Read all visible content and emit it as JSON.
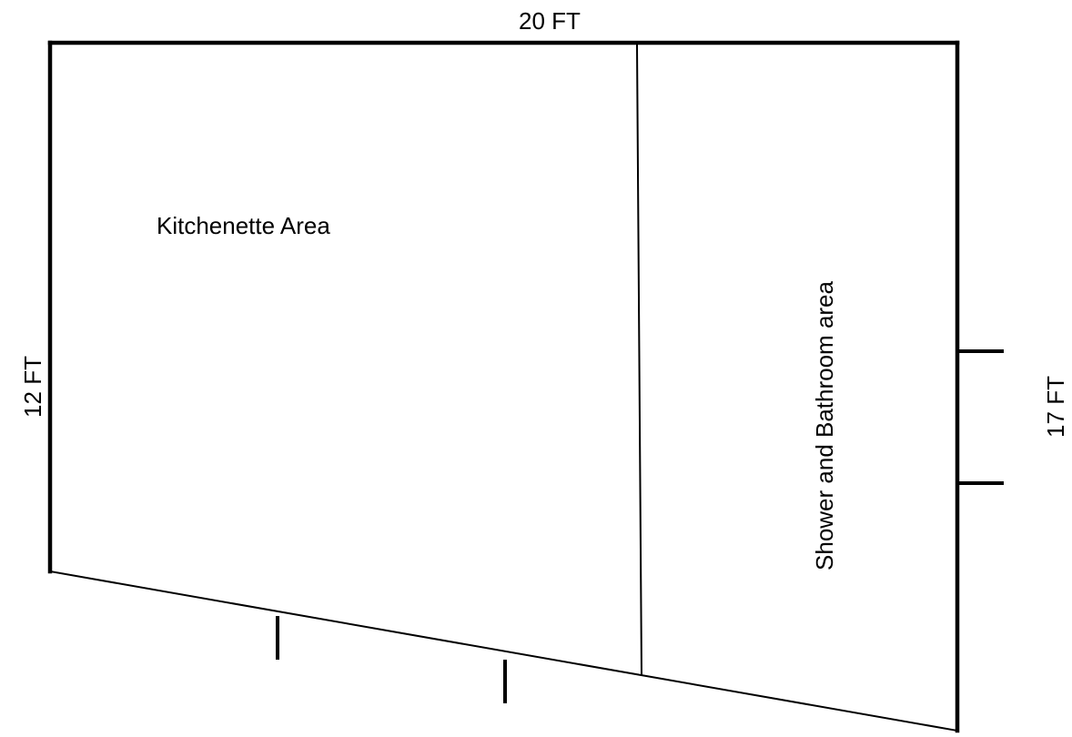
{
  "dimensions": {
    "top": "20 FT",
    "left": "12 FT",
    "right": "17 FT"
  },
  "rooms": {
    "kitchenette": "Kitchenette Area",
    "bathroom": "Shower and Bathroom area"
  },
  "colors": {
    "line": "#000000",
    "background": "#ffffff"
  }
}
